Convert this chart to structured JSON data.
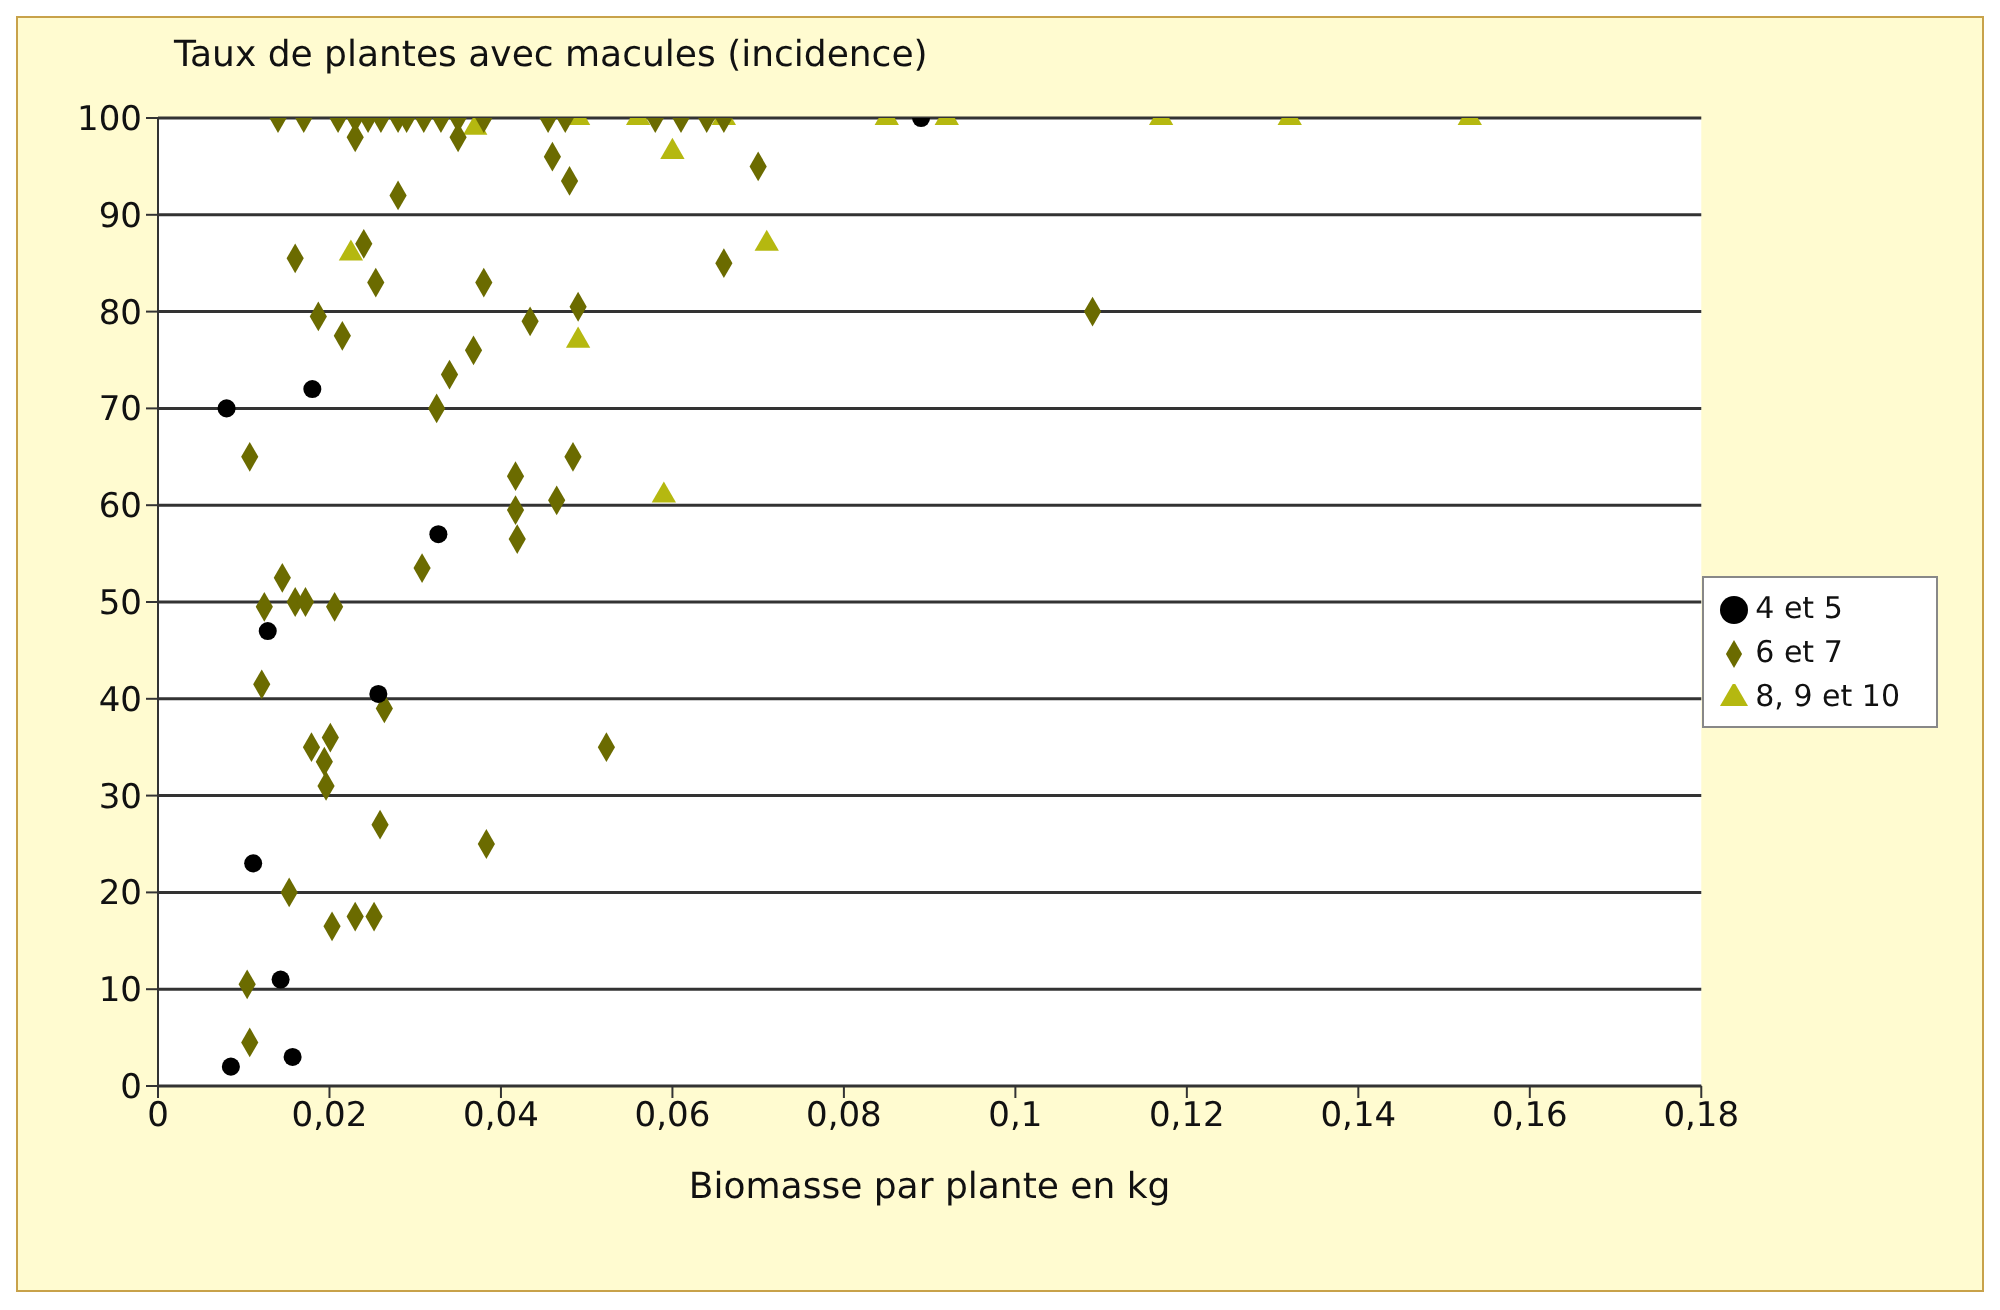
{
  "chart_data": {
    "type": "scatter",
    "ylabel": "Taux de plantes avec macules (incidence)",
    "xlabel": "Biomasse par plante en kg",
    "xlim": [
      0,
      0.18
    ],
    "xticks": [
      0,
      {
        "value": 0.02,
        "label": "0,02"
      },
      {
        "value": 0.04,
        "label": "0,04"
      },
      {
        "value": 0.06,
        "label": "0,06"
      },
      {
        "value": 0.08,
        "label": "0,08"
      },
      {
        "value": 0.1,
        "label": "0,1"
      },
      {
        "value": 0.12,
        "label": "0,12"
      },
      {
        "value": 0.14,
        "label": "0,14"
      },
      {
        "value": 0.16,
        "label": "0,16"
      },
      {
        "value": 0.18,
        "label": "0,18"
      }
    ],
    "ylim": [
      0,
      100
    ],
    "yticks": [
      0,
      10,
      20,
      30,
      40,
      50,
      60,
      70,
      80,
      90,
      100
    ],
    "grid": "y",
    "legend": "right",
    "series": [
      {
        "name": "8, 9 et 10",
        "color": "#b5b810",
        "marker": "triangle",
        "x": [
          0.0225,
          0.037,
          0.049,
          0.049,
          0.056,
          0.06,
          0.059,
          0.066,
          0.071,
          0.085,
          0.092,
          0.117,
          0.132,
          0.153
        ],
        "values": [
          86,
          99,
          100,
          77,
          100,
          96.5,
          61,
          100,
          87,
          100,
          100,
          100,
          100,
          100
        ]
      },
      {
        "name": "6 et 7",
        "color": "#6b6b00",
        "marker": "diamond",
        "x": [
          0.014,
          0.017,
          0.021,
          0.023,
          0.0245,
          0.026,
          0.028,
          0.029,
          0.031,
          0.033,
          0.035,
          0.038,
          0.0455,
          0.0475,
          0.058,
          0.061,
          0.064,
          0.066,
          0.023,
          0.035,
          0.046,
          0.048,
          0.028,
          0.016,
          0.024,
          0.0254,
          0.038,
          0.0187,
          0.0215,
          0.0434,
          0.049,
          0.0368,
          0.034,
          0.0325,
          0.0107,
          0.0484,
          0.0417,
          0.0417,
          0.0465,
          0.0419,
          0.0308,
          0.0145,
          0.0124,
          0.016,
          0.0172,
          0.0206,
          0.0121,
          0.0264,
          0.0201,
          0.0179,
          0.0194,
          0.0196,
          0.0259,
          0.0383,
          0.0523,
          0.0153,
          0.0203,
          0.023,
          0.0252,
          0.0104,
          0.0107,
          0.07,
          0.066,
          0.109
        ],
        "values": [
          100,
          100,
          100,
          100,
          100,
          100,
          100,
          100,
          100,
          100,
          100,
          100,
          100,
          100,
          100,
          100,
          100,
          100,
          98,
          98,
          96,
          93.5,
          92,
          85.5,
          87,
          83,
          83,
          79.5,
          77.5,
          79,
          80.5,
          76,
          73.5,
          70,
          65,
          65,
          63,
          59.5,
          60.5,
          56.5,
          53.5,
          52.5,
          49.5,
          50,
          50,
          49.5,
          41.5,
          39,
          36,
          35,
          33.5,
          31,
          27,
          25,
          35,
          20,
          16.5,
          17.5,
          17.5,
          10.5,
          4.5,
          95,
          85,
          80
        ]
      },
      {
        "name": "4 et 5",
        "color": "#000000",
        "marker": "circle",
        "x": [
          0.008,
          0.018,
          0.0327,
          0.0128,
          0.0257,
          0.0111,
          0.0143,
          0.0085,
          0.0157,
          0.089
        ],
        "values": [
          70,
          72,
          57,
          47,
          40.5,
          23,
          11,
          2,
          3,
          100
        ]
      }
    ]
  }
}
